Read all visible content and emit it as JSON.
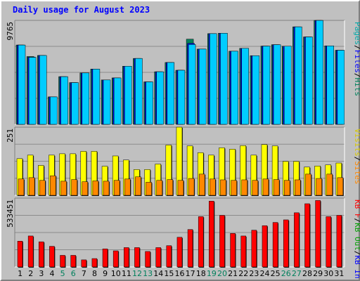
{
  "title": "Daily usage for August 2023",
  "colors": {
    "pages": "#00a8a8",
    "files": "#0000ff",
    "hits": "#00805c",
    "visits": "#d8c800",
    "sites": "#ff8800",
    "kb_in": "#0000ff",
    "kb_out": "#00a000",
    "kb_f": "#ff0000",
    "weekend_day": "#00805c",
    "weekday": "#000000"
  },
  "chart_data": [
    {
      "type": "bar",
      "panel": "hits-files-pages",
      "ymax_label": "9765",
      "ylim": [
        0,
        9765
      ],
      "right_label": [
        {
          "text": "Pages",
          "color": "#00a8a8"
        },
        {
          "text": "/",
          "color": "#000000"
        },
        {
          "text": "Files",
          "color": "#0000ff"
        },
        {
          "text": "/",
          "color": "#000000"
        },
        {
          "text": "Hits",
          "color": "#00805c"
        }
      ],
      "categories": [
        "1",
        "2",
        "3",
        "4",
        "5",
        "6",
        "7",
        "8",
        "9",
        "10",
        "11",
        "12",
        "13",
        "14",
        "15",
        "16",
        "17",
        "18",
        "19",
        "20",
        "21",
        "22",
        "23",
        "24",
        "25",
        "26",
        "27",
        "28",
        "29",
        "30",
        "31"
      ],
      "series": [
        {
          "name": "Hits",
          "color": "#00805c",
          "values": [
            7450,
            6370,
            6470,
            2580,
            4480,
            3920,
            4830,
            5190,
            4170,
            4360,
            5460,
            6190,
            3990,
            4940,
            5810,
            5080,
            8000,
            7070,
            8520,
            8560,
            6870,
            7140,
            6450,
            7350,
            7480,
            7340,
            9160,
            8210,
            9760,
            7370,
            6960
          ]
        },
        {
          "name": "Files",
          "color": "#0000ff",
          "values": [
            7450,
            6320,
            6470,
            2580,
            4480,
            3920,
            4830,
            5190,
            4170,
            4360,
            5460,
            6190,
            3990,
            4940,
            5810,
            5080,
            7600,
            7070,
            8520,
            8560,
            6870,
            7140,
            6450,
            7350,
            7480,
            7340,
            9160,
            8210,
            9760,
            7370,
            6960
          ]
        },
        {
          "name": "Pages",
          "color": "#00a8a8",
          "values": [
            7450,
            6300,
            6470,
            2580,
            4480,
            3920,
            4830,
            5190,
            4170,
            4360,
            5460,
            6190,
            3990,
            4940,
            5810,
            5080,
            7500,
            7070,
            8520,
            8560,
            6870,
            7140,
            6450,
            7350,
            7480,
            7340,
            9160,
            8210,
            9760,
            7370,
            6960
          ]
        }
      ]
    },
    {
      "type": "bar",
      "panel": "visits-sites",
      "ymax_label": "251",
      "ylim": [
        0,
        251
      ],
      "right_label": [
        {
          "text": "Visits",
          "color": "#d8c800"
        },
        {
          "text": "/",
          "color": "#000000"
        },
        {
          "text": "Sites",
          "color": "#ff8800"
        }
      ],
      "categories": [
        "1",
        "2",
        "3",
        "4",
        "5",
        "6",
        "7",
        "8",
        "9",
        "10",
        "11",
        "12",
        "13",
        "14",
        "15",
        "16",
        "17",
        "18",
        "19",
        "20",
        "21",
        "22",
        "23",
        "24",
        "25",
        "26",
        "27",
        "28",
        "29",
        "30",
        "31"
      ],
      "series": [
        {
          "name": "Visits",
          "color": "#ffff00",
          "values": [
            135,
            148,
            110,
            148,
            153,
            153,
            162,
            162,
            107,
            145,
            130,
            95,
            95,
            115,
            185,
            251,
            182,
            157,
            148,
            175,
            170,
            183,
            148,
            187,
            182,
            125,
            125,
            104,
            108,
            112,
            119
          ]
        },
        {
          "name": "Sites",
          "color": "#ff8800",
          "values": [
            60,
            65,
            55,
            72,
            52,
            58,
            50,
            53,
            52,
            55,
            60,
            68,
            48,
            55,
            58,
            55,
            62,
            78,
            60,
            57,
            55,
            57,
            55,
            60,
            58,
            55,
            57,
            78,
            62,
            78,
            65
          ]
        }
      ]
    },
    {
      "type": "bar",
      "panel": "kbytes",
      "ymax_label": "533451",
      "ylim": [
        0,
        533451
      ],
      "right_label": [
        {
          "text": "KB F",
          "color": "#ff0000"
        },
        {
          "text": "/",
          "color": "#000000"
        },
        {
          "text": "KB Out",
          "color": "#00a000"
        },
        {
          "text": "/",
          "color": "#000000"
        },
        {
          "text": "KB In",
          "color": "#0000ff"
        }
      ],
      "categories": [
        "1",
        "2",
        "3",
        "4",
        "5",
        "6",
        "7",
        "8",
        "9",
        "10",
        "11",
        "12",
        "13",
        "14",
        "15",
        "16",
        "17",
        "18",
        "19",
        "20",
        "21",
        "22",
        "23",
        "24",
        "25",
        "26",
        "27",
        "28",
        "29",
        "30",
        "31"
      ],
      "series": [
        {
          "name": "KB F",
          "color": "#ff0000",
          "values": [
            200000,
            240000,
            195000,
            160000,
            90000,
            90000,
            55000,
            65000,
            140000,
            125000,
            150000,
            150000,
            120000,
            150000,
            165000,
            230000,
            290000,
            390000,
            510000,
            400000,
            260000,
            240000,
            285000,
            320000,
            345000,
            365000,
            420000,
            490000,
            515000,
            390000,
            400000
          ]
        }
      ]
    }
  ],
  "xaxis": {
    "labels": [
      {
        "text": "1",
        "weekend": false
      },
      {
        "text": "2",
        "weekend": false
      },
      {
        "text": "3",
        "weekend": false
      },
      {
        "text": "4",
        "weekend": false
      },
      {
        "text": "5",
        "weekend": true
      },
      {
        "text": "6",
        "weekend": true
      },
      {
        "text": "7",
        "weekend": false
      },
      {
        "text": "8",
        "weekend": false
      },
      {
        "text": "9",
        "weekend": false
      },
      {
        "text": "10",
        "weekend": false
      },
      {
        "text": "11",
        "weekend": false
      },
      {
        "text": "12",
        "weekend": true
      },
      {
        "text": "13",
        "weekend": true
      },
      {
        "text": "14",
        "weekend": false
      },
      {
        "text": "15",
        "weekend": false
      },
      {
        "text": "16",
        "weekend": false
      },
      {
        "text": "17",
        "weekend": false
      },
      {
        "text": "18",
        "weekend": false
      },
      {
        "text": "19",
        "weekend": true
      },
      {
        "text": "20",
        "weekend": true
      },
      {
        "text": "21",
        "weekend": false
      },
      {
        "text": "22",
        "weekend": false
      },
      {
        "text": "23",
        "weekend": false
      },
      {
        "text": "24",
        "weekend": false
      },
      {
        "text": "25",
        "weekend": false
      },
      {
        "text": "26",
        "weekend": true
      },
      {
        "text": "27",
        "weekend": true
      },
      {
        "text": "28",
        "weekend": false
      },
      {
        "text": "29",
        "weekend": false
      },
      {
        "text": "30",
        "weekend": false
      },
      {
        "text": "31",
        "weekend": false
      }
    ]
  }
}
